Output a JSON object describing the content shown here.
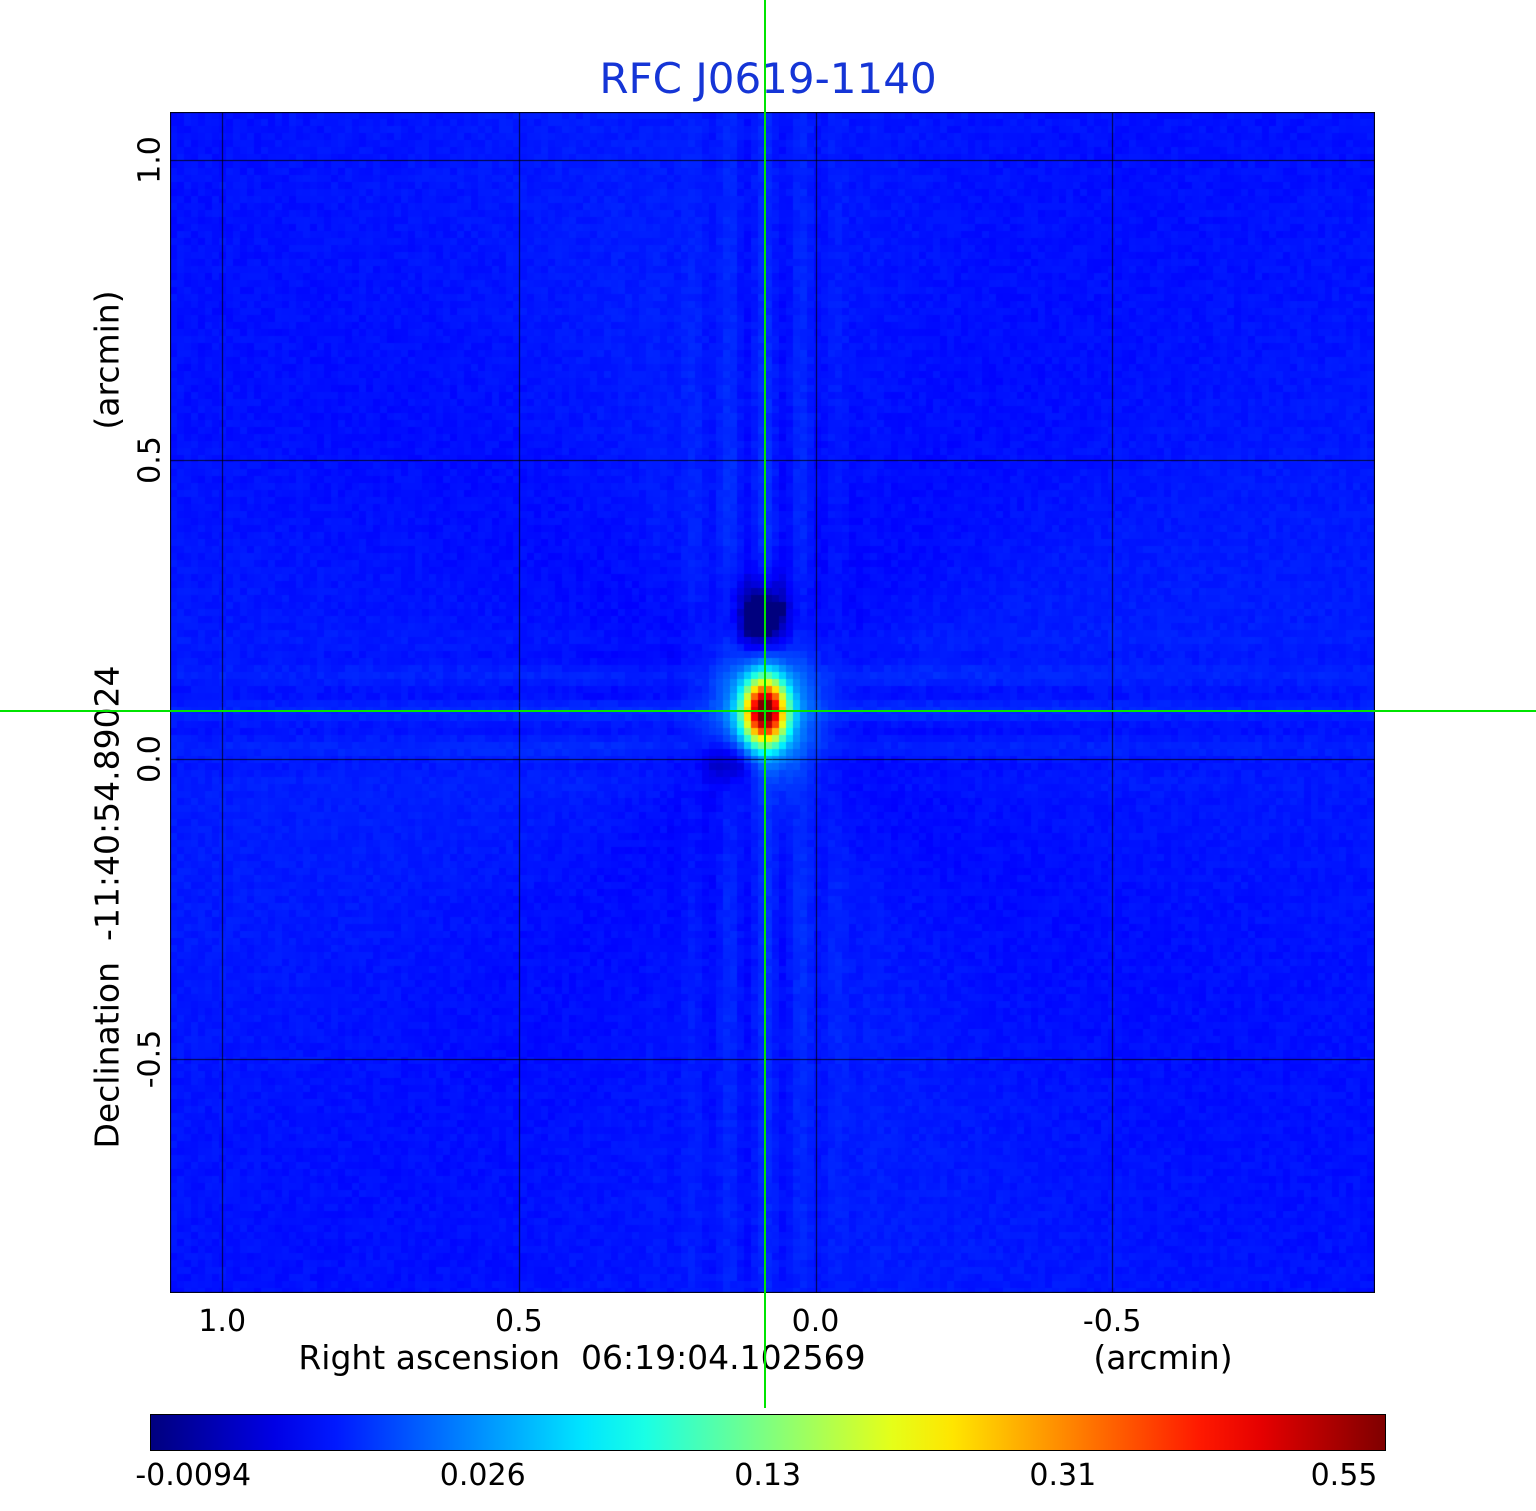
{
  "title": "RFC J0619-1140",
  "colors": {
    "title": "#1535d6",
    "crosshair": "#00e400",
    "axis_text": "#000000",
    "background": "#ffffff"
  },
  "y_axis": {
    "unit_label": "(arcmin)",
    "axis_label": "Declination  -11:40:54.89024",
    "ticks": [
      "1.0",
      "0.5",
      "0.0",
      "-0.5"
    ]
  },
  "x_axis": {
    "axis_label": "Right ascension  06:19:04.102569",
    "unit_label": "(arcmin)",
    "ticks": [
      "1.0",
      "0.5",
      "0.0",
      "-0.5"
    ]
  },
  "colorbar": {
    "tick_labels": [
      "-0.0094",
      "0.026",
      "0.13",
      "0.31",
      "0.55"
    ]
  },
  "chart_data": {
    "type": "heatmap",
    "title": "RFC J0619-1140",
    "xlabel": "Right ascension 06:19:04.102569 (arcmin)",
    "ylabel": "Declination -11:40:54.89024 (arcmin)",
    "x_range_arcmin": [
      1.088,
      -0.943
    ],
    "y_range_arcmin": [
      -0.89,
      1.08
    ],
    "x_tick_values": [
      1.0,
      0.5,
      0.0,
      -0.5
    ],
    "y_tick_values": [
      1.0,
      0.5,
      0.0,
      -0.5
    ],
    "grid": true,
    "colormap": "jet",
    "intensity_scale": "sqrt",
    "intensity_min": -0.0094,
    "intensity_max": 0.55,
    "colorbar_tick_values": [
      -0.0094,
      0.026,
      0.13,
      0.31,
      0.55
    ],
    "source_peak": {
      "ra_arcmin": 0.085,
      "dec_arcmin": 0.08,
      "peak": 0.55
    },
    "beam_sigma_arcmin": {
      "x": 0.02,
      "y": 0.03
    },
    "crosshair_arcmin": {
      "ra": 0.085,
      "dec": 0.08
    },
    "background_level": 0.0
  }
}
